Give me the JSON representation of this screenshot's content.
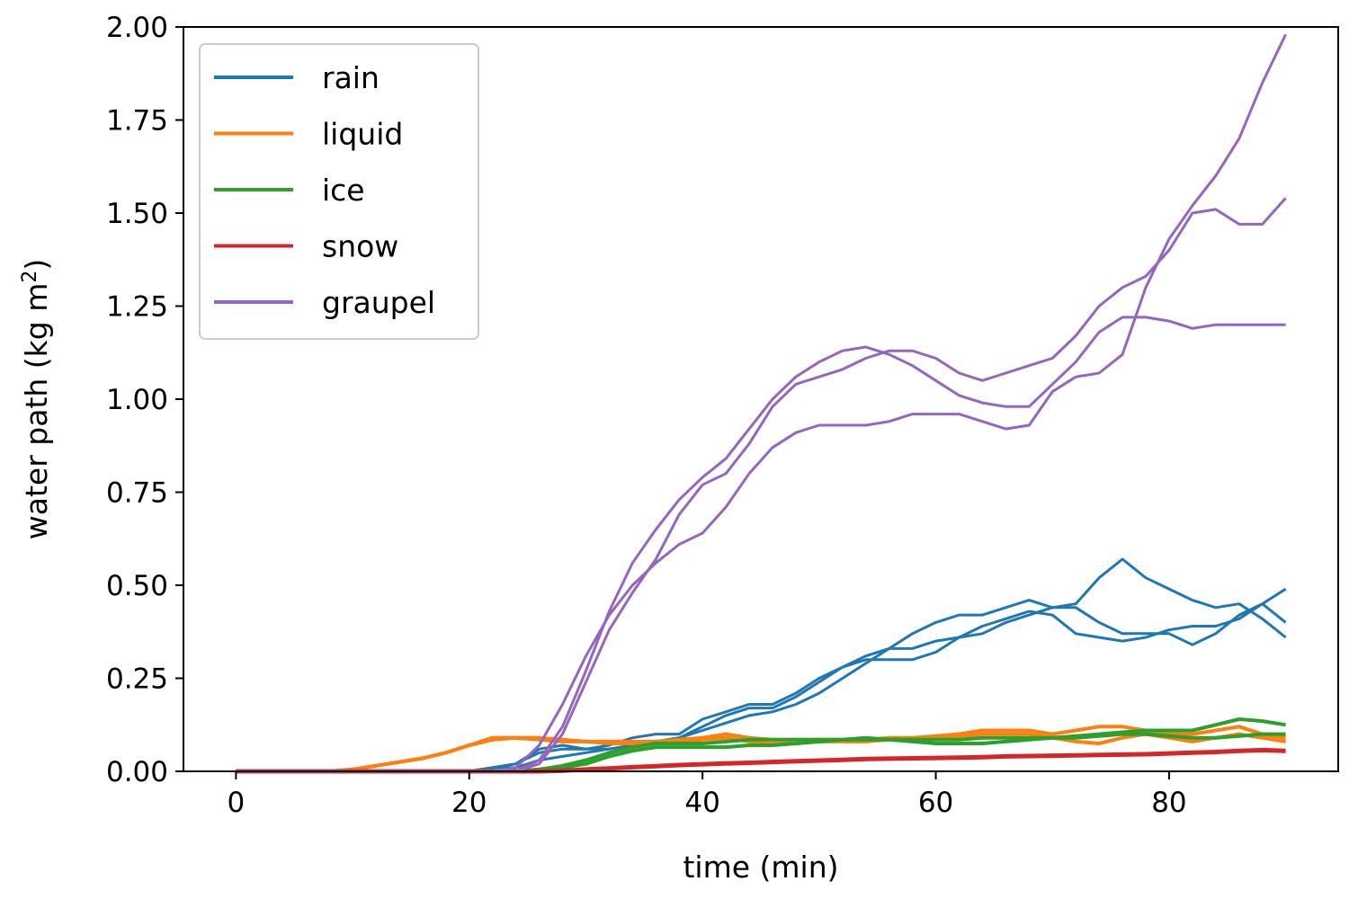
{
  "chart_data": {
    "type": "line",
    "xlabel": "time (min)",
    "ylabel_main": "water path (kg m",
    "ylabel_sup": "2",
    "ylabel_end": ")",
    "xlim": [
      -4.5,
      94.5
    ],
    "ylim": [
      0,
      2
    ],
    "xticks": [
      0,
      20,
      40,
      60,
      80
    ],
    "xtick_labels": [
      "0",
      "20",
      "40",
      "60",
      "80"
    ],
    "yticks": [
      0,
      0.25,
      0.5,
      0.75,
      1.0,
      1.25,
      1.5,
      1.75,
      2.0
    ],
    "ytick_labels": [
      "0.00",
      "0.25",
      "0.50",
      "0.75",
      "1.00",
      "1.25",
      "1.50",
      "1.75",
      "2.00"
    ],
    "grid": false,
    "legend_position": "top-left",
    "x": [
      0,
      2,
      4,
      6,
      8,
      10,
      12,
      14,
      16,
      18,
      20,
      22,
      24,
      26,
      28,
      30,
      32,
      34,
      36,
      38,
      40,
      42,
      44,
      46,
      48,
      50,
      52,
      54,
      56,
      58,
      60,
      62,
      64,
      66,
      68,
      70,
      72,
      74,
      76,
      78,
      80,
      82,
      84,
      86,
      88,
      90
    ],
    "series": [
      {
        "name": "rain",
        "color": "#1f77b4",
        "width": 3,
        "show_in_legend": true,
        "values": [
          0,
          0,
          0,
          0,
          0,
          0,
          0,
          0,
          0,
          0,
          0,
          0.01,
          0.02,
          0.06,
          0.07,
          0.06,
          0.07,
          0.09,
          0.1,
          0.1,
          0.14,
          0.16,
          0.18,
          0.18,
          0.21,
          0.25,
          0.28,
          0.3,
          0.3,
          0.3,
          0.32,
          0.36,
          0.39,
          0.41,
          0.43,
          0.42,
          0.37,
          0.36,
          0.35,
          0.36,
          0.38,
          0.39,
          0.39,
          0.41,
          0.45,
          0.49
        ]
      },
      {
        "name": "rain",
        "color": "#1f77b4",
        "width": 3,
        "show_in_legend": false,
        "values": [
          0,
          0,
          0,
          0,
          0,
          0,
          0,
          0,
          0,
          0,
          0,
          0.01,
          0.02,
          0.05,
          0.06,
          0.06,
          0.06,
          0.07,
          0.08,
          0.09,
          0.12,
          0.15,
          0.17,
          0.17,
          0.2,
          0.24,
          0.28,
          0.31,
          0.33,
          0.37,
          0.4,
          0.42,
          0.42,
          0.44,
          0.46,
          0.44,
          0.44,
          0.4,
          0.37,
          0.37,
          0.37,
          0.34,
          0.37,
          0.42,
          0.45,
          0.4
        ]
      },
      {
        "name": "rain",
        "color": "#1f77b4",
        "width": 3,
        "show_in_legend": false,
        "values": [
          0,
          0,
          0,
          0,
          0,
          0,
          0,
          0,
          0,
          0,
          0,
          0.01,
          0.01,
          0.03,
          0.04,
          0.05,
          0.06,
          0.07,
          0.08,
          0.09,
          0.11,
          0.13,
          0.15,
          0.16,
          0.18,
          0.21,
          0.25,
          0.29,
          0.33,
          0.33,
          0.35,
          0.36,
          0.37,
          0.4,
          0.42,
          0.44,
          0.45,
          0.52,
          0.57,
          0.52,
          0.49,
          0.46,
          0.44,
          0.45,
          0.41,
          0.36
        ]
      },
      {
        "name": "liquid",
        "color": "#ff7f0e",
        "width": 4,
        "show_in_legend": true,
        "values": [
          0,
          0,
          0,
          0,
          0,
          0.005,
          0.015,
          0.025,
          0.035,
          0.05,
          0.07,
          0.09,
          0.09,
          0.085,
          0.08,
          0.08,
          0.08,
          0.08,
          0.08,
          0.085,
          0.09,
          0.1,
          0.09,
          0.085,
          0.085,
          0.085,
          0.085,
          0.085,
          0.09,
          0.09,
          0.095,
          0.1,
          0.11,
          0.11,
          0.11,
          0.1,
          0.11,
          0.12,
          0.12,
          0.11,
          0.1,
          0.1,
          0.11,
          0.12,
          0.1,
          0.09
        ]
      },
      {
        "name": "liquid",
        "color": "#ff7f0e",
        "width": 4,
        "show_in_legend": false,
        "values": [
          0,
          0,
          0,
          0,
          0,
          0.005,
          0.015,
          0.025,
          0.035,
          0.05,
          0.07,
          0.085,
          0.09,
          0.09,
          0.085,
          0.08,
          0.075,
          0.075,
          0.08,
          0.08,
          0.085,
          0.09,
          0.08,
          0.075,
          0.075,
          0.08,
          0.08,
          0.08,
          0.085,
          0.085,
          0.09,
          0.095,
          0.1,
          0.1,
          0.1,
          0.09,
          0.08,
          0.075,
          0.09,
          0.1,
          0.09,
          0.08,
          0.09,
          0.1,
          0.09,
          0.08
        ]
      },
      {
        "name": "ice",
        "color": "#2ca02c",
        "width": 4,
        "show_in_legend": true,
        "values": [
          0,
          0,
          0,
          0,
          0,
          0,
          0,
          0,
          0,
          0,
          0,
          0,
          0,
          0.005,
          0.015,
          0.03,
          0.05,
          0.065,
          0.075,
          0.075,
          0.075,
          0.08,
          0.085,
          0.085,
          0.085,
          0.085,
          0.085,
          0.09,
          0.085,
          0.08,
          0.075,
          0.075,
          0.075,
          0.08,
          0.085,
          0.09,
          0.095,
          0.1,
          0.105,
          0.11,
          0.11,
          0.11,
          0.125,
          0.14,
          0.135,
          0.125
        ]
      },
      {
        "name": "ice",
        "color": "#2ca02c",
        "width": 4,
        "show_in_legend": false,
        "values": [
          0,
          0,
          0,
          0,
          0,
          0,
          0,
          0,
          0,
          0,
          0,
          0,
          0,
          0.005,
          0.01,
          0.02,
          0.04,
          0.055,
          0.065,
          0.065,
          0.065,
          0.065,
          0.07,
          0.07,
          0.075,
          0.08,
          0.085,
          0.085,
          0.085,
          0.085,
          0.085,
          0.085,
          0.09,
          0.09,
          0.09,
          0.09,
          0.09,
          0.095,
          0.1,
          0.1,
          0.095,
          0.09,
          0.09,
          0.095,
          0.1,
          0.1
        ]
      },
      {
        "name": "snow",
        "color": "#d62728",
        "width": 5,
        "show_in_legend": true,
        "values": [
          0,
          0,
          0,
          0,
          0,
          0,
          0,
          0,
          0,
          0,
          0,
          0,
          0,
          0,
          0.002,
          0.005,
          0.008,
          0.011,
          0.014,
          0.017,
          0.019,
          0.021,
          0.023,
          0.025,
          0.027,
          0.029,
          0.031,
          0.033,
          0.034,
          0.035,
          0.036,
          0.037,
          0.038,
          0.04,
          0.041,
          0.042,
          0.043,
          0.044,
          0.045,
          0.046,
          0.048,
          0.05,
          0.052,
          0.055,
          0.057,
          0.055
        ]
      },
      {
        "name": "graupel",
        "color": "#9467bd",
        "width": 3,
        "show_in_legend": true,
        "values": [
          0,
          0,
          0,
          0,
          0,
          0,
          0,
          0,
          0,
          0,
          0,
          0,
          0,
          0.03,
          0.12,
          0.27,
          0.43,
          0.56,
          0.65,
          0.73,
          0.79,
          0.84,
          0.92,
          1.0,
          1.06,
          1.1,
          1.13,
          1.14,
          1.12,
          1.09,
          1.05,
          1.01,
          0.99,
          0.98,
          0.98,
          1.04,
          1.1,
          1.18,
          1.22,
          1.22,
          1.21,
          1.19,
          1.2,
          1.2,
          1.2,
          1.2
        ]
      },
      {
        "name": "graupel",
        "color": "#9467bd",
        "width": 3,
        "show_in_legend": false,
        "values": [
          0,
          0,
          0,
          0,
          0,
          0,
          0,
          0,
          0,
          0,
          0,
          0,
          0.01,
          0.07,
          0.18,
          0.31,
          0.42,
          0.5,
          0.56,
          0.61,
          0.64,
          0.71,
          0.8,
          0.87,
          0.91,
          0.93,
          0.93,
          0.93,
          0.94,
          0.96,
          0.96,
          0.96,
          0.94,
          0.92,
          0.93,
          1.02,
          1.06,
          1.07,
          1.12,
          1.3,
          1.43,
          1.52,
          1.6,
          1.7,
          1.85,
          1.98
        ]
      },
      {
        "name": "graupel",
        "color": "#9467bd",
        "width": 3,
        "show_in_legend": false,
        "values": [
          0,
          0,
          0,
          0,
          0,
          0,
          0,
          0,
          0,
          0,
          0,
          0,
          0,
          0.02,
          0.1,
          0.24,
          0.38,
          0.48,
          0.57,
          0.69,
          0.77,
          0.8,
          0.88,
          0.98,
          1.04,
          1.06,
          1.08,
          1.11,
          1.13,
          1.13,
          1.11,
          1.07,
          1.05,
          1.07,
          1.09,
          1.11,
          1.17,
          1.25,
          1.3,
          1.33,
          1.4,
          1.5,
          1.51,
          1.47,
          1.47,
          1.54
        ]
      }
    ],
    "legend": [
      {
        "label": "rain",
        "color": "#1f77b4"
      },
      {
        "label": "liquid",
        "color": "#ff7f0e"
      },
      {
        "label": "ice",
        "color": "#2ca02c"
      },
      {
        "label": "snow",
        "color": "#d62728"
      },
      {
        "label": "graupel",
        "color": "#9467bd"
      }
    ]
  }
}
